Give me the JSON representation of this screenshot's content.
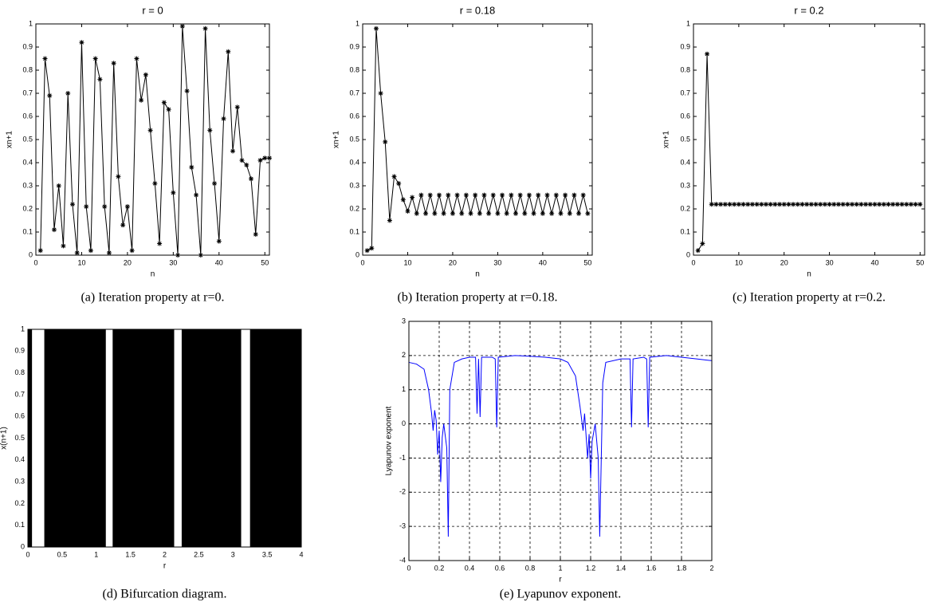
{
  "chart_data": [
    {
      "type": "line",
      "title": "r = 0",
      "caption": "(a) Iteration property at r=0.",
      "xlabel": "n",
      "ylabel": "xn+1",
      "marker": "star",
      "color": "#000000",
      "x": [
        1,
        2,
        3,
        4,
        5,
        6,
        7,
        8,
        9,
        10,
        11,
        12,
        13,
        14,
        15,
        16,
        17,
        18,
        19,
        20,
        21,
        22,
        23,
        24,
        25,
        26,
        27,
        28,
        29,
        30,
        31,
        32,
        33,
        34,
        35,
        36,
        37,
        38,
        39,
        40,
        41,
        42,
        43,
        44,
        45,
        46,
        47,
        48,
        49,
        50,
        51
      ],
      "values": [
        0.02,
        0.85,
        0.69,
        0.11,
        0.3,
        0.04,
        0.7,
        0.22,
        0.01,
        0.92,
        0.21,
        0.02,
        0.85,
        0.76,
        0.21,
        0.01,
        0.83,
        0.34,
        0.13,
        0.21,
        0.02,
        0.85,
        0.67,
        0.78,
        0.54,
        0.31,
        0.05,
        0.66,
        0.63,
        0.27,
        0.0,
        0.99,
        0.71,
        0.38,
        0.26,
        0.0,
        0.98,
        0.54,
        0.31,
        0.06,
        0.59,
        0.88,
        0.45,
        0.64,
        0.41,
        0.39,
        0.33,
        0.09,
        0.41,
        0.42,
        0.42
      ],
      "xlim": [
        0,
        51
      ],
      "xticks": [
        0,
        10,
        20,
        30,
        40,
        50
      ],
      "ylim": [
        0,
        1
      ],
      "yticks": [
        0,
        0.1,
        0.2,
        0.3,
        0.4,
        0.5,
        0.6,
        0.7,
        0.8,
        0.9,
        1
      ]
    },
    {
      "type": "line",
      "title": "r = 0.18",
      "caption": "(b) Iteration property at r=0.18.",
      "xlabel": "n",
      "ylabel": "xn+1",
      "marker": "star",
      "color": "#000000",
      "x": [
        1,
        2,
        3,
        4,
        5,
        6,
        7,
        8,
        9,
        10,
        11,
        12,
        13,
        14,
        15,
        16,
        17,
        18,
        19,
        20,
        21,
        22,
        23,
        24,
        25,
        26,
        27,
        28,
        29,
        30,
        31,
        32,
        33,
        34,
        35,
        36,
        37,
        38,
        39,
        40,
        41,
        42,
        43,
        44,
        45,
        46,
        47,
        48,
        49,
        50
      ],
      "values": [
        0.02,
        0.03,
        0.98,
        0.7,
        0.49,
        0.15,
        0.34,
        0.31,
        0.24,
        0.19,
        0.25,
        0.18,
        0.26,
        0.18,
        0.26,
        0.18,
        0.26,
        0.18,
        0.26,
        0.18,
        0.26,
        0.18,
        0.26,
        0.18,
        0.26,
        0.18,
        0.26,
        0.18,
        0.26,
        0.18,
        0.26,
        0.18,
        0.26,
        0.18,
        0.26,
        0.18,
        0.26,
        0.18,
        0.26,
        0.18,
        0.26,
        0.18,
        0.26,
        0.18,
        0.26,
        0.18,
        0.26,
        0.18,
        0.26,
        0.18
      ],
      "xlim": [
        0,
        51
      ],
      "xticks": [
        0,
        10,
        20,
        30,
        40,
        50
      ],
      "ylim": [
        0,
        1
      ],
      "yticks": [
        0,
        0.1,
        0.2,
        0.3,
        0.4,
        0.5,
        0.6,
        0.7,
        0.8,
        0.9,
        1
      ]
    },
    {
      "type": "line",
      "title": "r = 0.2",
      "caption": "(c) Iteration property at r=0.2.",
      "xlabel": "n",
      "ylabel": "xn+1",
      "marker": "star",
      "color": "#000000",
      "x": [
        1,
        2,
        3,
        4,
        5,
        6,
        7,
        8,
        9,
        10,
        11,
        12,
        13,
        14,
        15,
        16,
        17,
        18,
        19,
        20,
        21,
        22,
        23,
        24,
        25,
        26,
        27,
        28,
        29,
        30,
        31,
        32,
        33,
        34,
        35,
        36,
        37,
        38,
        39,
        40,
        41,
        42,
        43,
        44,
        45,
        46,
        47,
        48,
        49,
        50
      ],
      "values": [
        0.02,
        0.05,
        0.87,
        0.22,
        0.22,
        0.22,
        0.22,
        0.22,
        0.22,
        0.22,
        0.22,
        0.22,
        0.22,
        0.22,
        0.22,
        0.22,
        0.22,
        0.22,
        0.22,
        0.22,
        0.22,
        0.22,
        0.22,
        0.22,
        0.22,
        0.22,
        0.22,
        0.22,
        0.22,
        0.22,
        0.22,
        0.22,
        0.22,
        0.22,
        0.22,
        0.22,
        0.22,
        0.22,
        0.22,
        0.22,
        0.22,
        0.22,
        0.22,
        0.22,
        0.22,
        0.22,
        0.22,
        0.22,
        0.22,
        0.22
      ],
      "xlim": [
        0,
        51
      ],
      "xticks": [
        0,
        10,
        20,
        30,
        40,
        50
      ],
      "ylim": [
        0,
        1
      ],
      "yticks": [
        0,
        0.1,
        0.2,
        0.3,
        0.4,
        0.5,
        0.6,
        0.7,
        0.8,
        0.9,
        1
      ]
    },
    {
      "type": "bifurcation",
      "caption": "(d) Bifurcation diagram.",
      "xlabel": "r",
      "ylabel": "x(n+1)",
      "color": "#000000",
      "bands": [
        [
          0,
          0.06
        ],
        [
          0.24,
          1.14
        ],
        [
          1.24,
          2.14
        ],
        [
          2.25,
          3.12
        ],
        [
          3.25,
          4
        ]
      ],
      "xlim": [
        0,
        4
      ],
      "xticks": [
        0,
        0.5,
        1,
        1.5,
        2,
        2.5,
        3,
        3.5,
        4
      ],
      "ylim": [
        0,
        1
      ],
      "yticks": [
        0,
        0.1,
        0.2,
        0.3,
        0.4,
        0.5,
        0.6,
        0.7,
        0.8,
        0.9,
        1
      ]
    },
    {
      "type": "line",
      "caption": "(e) Lyapunov exponent.",
      "xlabel": "r",
      "ylabel": "Lyapunov exponent",
      "color": "#0000ff",
      "grid": true,
      "x": [
        0,
        0.05,
        0.1,
        0.13,
        0.15,
        0.16,
        0.17,
        0.18,
        0.19,
        0.2,
        0.21,
        0.22,
        0.23,
        0.25,
        0.26,
        0.27,
        0.3,
        0.35,
        0.4,
        0.44,
        0.45,
        0.46,
        0.47,
        0.48,
        0.55,
        0.57,
        0.58,
        0.59,
        0.7,
        0.8,
        0.9,
        1.0,
        1.05,
        1.1,
        1.13,
        1.15,
        1.16,
        1.18,
        1.19,
        1.2,
        1.21,
        1.23,
        1.25,
        1.26,
        1.28,
        1.3,
        1.4,
        1.46,
        1.47,
        1.48,
        1.55,
        1.57,
        1.58,
        1.59,
        1.7,
        1.8,
        1.9,
        2.0
      ],
      "values": [
        1.8,
        1.75,
        1.6,
        1.0,
        0.3,
        -0.2,
        0.4,
        0.1,
        -0.9,
        -0.2,
        -1.7,
        -0.4,
        0.0,
        -0.7,
        -3.3,
        1.0,
        1.8,
        1.9,
        1.95,
        1.95,
        0.3,
        1.9,
        0.2,
        1.95,
        1.95,
        1.9,
        -0.1,
        1.95,
        2.0,
        1.98,
        1.95,
        1.9,
        1.8,
        1.4,
        0.5,
        -0.2,
        0.3,
        -1.0,
        -0.3,
        -1.6,
        -0.5,
        0.0,
        -1.0,
        -3.3,
        1.2,
        1.8,
        1.9,
        1.9,
        -0.1,
        1.9,
        1.95,
        1.9,
        -0.1,
        1.95,
        2.0,
        1.95,
        1.9,
        1.85
      ],
      "xlim": [
        0,
        2
      ],
      "xticks": [
        0,
        0.2,
        0.4,
        0.6,
        0.8,
        1,
        1.2,
        1.4,
        1.6,
        1.8,
        2
      ],
      "ylim": [
        -4,
        3
      ],
      "yticks": [
        -4,
        -3,
        -2,
        -1,
        0,
        1,
        2,
        3
      ]
    }
  ]
}
